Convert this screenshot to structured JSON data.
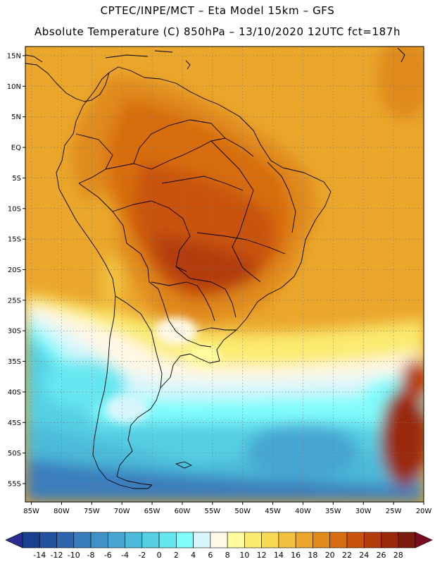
{
  "header": {
    "line1": "CPTEC/INPE/MCT –  Eta Model 15km – GFS",
    "line2": "Absolute Temperature (C) 850hPa – 13/10/2020 12UTC fct=187h"
  },
  "axes": {
    "lon_labels": [
      "85W",
      "80W",
      "75W",
      "70W",
      "65W",
      "60W",
      "55W",
      "50W",
      "45W",
      "40W",
      "35W",
      "30W",
      "25W",
      "20W"
    ],
    "lat_labels": [
      "15N",
      "10N",
      "5N",
      "EQ",
      "5S",
      "10S",
      "15S",
      "20S",
      "25S",
      "30S",
      "35S",
      "40S",
      "45S",
      "50S",
      "55S"
    ],
    "lon_values": [
      -85,
      -80,
      -75,
      -70,
      -65,
      -60,
      -55,
      -50,
      -45,
      -40,
      -35,
      -30,
      -25,
      -20
    ],
    "lat_values": [
      15,
      10,
      5,
      0,
      -5,
      -10,
      -15,
      -20,
      -25,
      -30,
      -35,
      -40,
      -45,
      -50,
      -55
    ],
    "lon_range": [
      -86,
      -20
    ],
    "lat_range": [
      -58,
      16.5
    ]
  },
  "legend": {
    "labels": [
      "-14",
      "-12",
      "-10",
      "-8",
      "-6",
      "-4",
      "-2",
      "0",
      "2",
      "4",
      "6",
      "8",
      "10",
      "12",
      "14",
      "16",
      "18",
      "20",
      "22",
      "24",
      "26",
      "28"
    ],
    "colors": [
      "#1b3f8f",
      "#23519d",
      "#2e66ae",
      "#3a7dbd",
      "#4191c6",
      "#47a6d2",
      "#4cbad9",
      "#54cfe3",
      "#66e6f0",
      "#7ffcfc",
      "#d8f6fb",
      "#fff8e6",
      "#fffba0",
      "#fbeb70",
      "#f6d954",
      "#f1c23f",
      "#eaa72c",
      "#e08a1a",
      "#d76d0f",
      "#c9530b",
      "#b43c0a",
      "#99290b",
      "#7a1d0e"
    ],
    "under_color": "#2a2d8f",
    "over_color": "#7a0c22"
  }
}
